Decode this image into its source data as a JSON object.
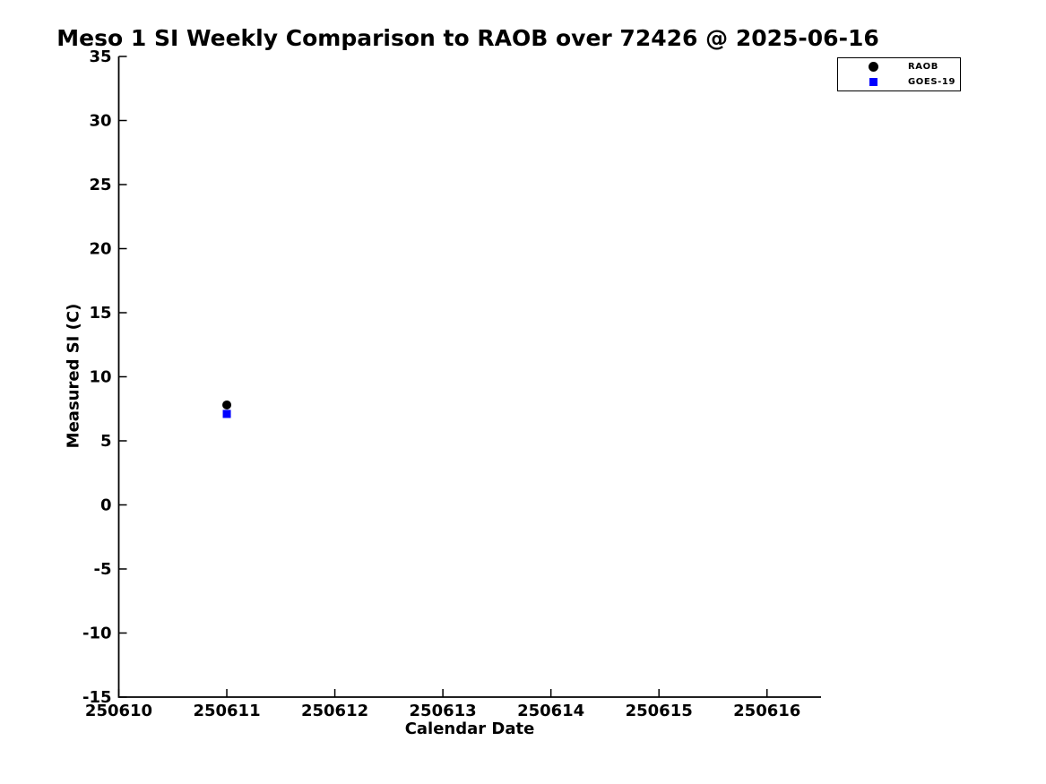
{
  "chart_data": {
    "type": "scatter",
    "title": "Meso 1 SI Weekly Comparison to RAOB over 72426 @ 2025-06-16",
    "xlabel": "Calendar Date",
    "ylabel": "Measured SI (C)",
    "xlim": [
      250610,
      250616.5
    ],
    "ylim": [
      -15,
      35
    ],
    "xticks": [
      250610,
      250611,
      250612,
      250613,
      250614,
      250615,
      250616
    ],
    "yticks": [
      35,
      30,
      25,
      20,
      15,
      10,
      5,
      0,
      -5,
      -10,
      -15
    ],
    "grid": false,
    "legend_position": "top-right",
    "axis_color": "#000000",
    "series": [
      {
        "name": "RAOB",
        "marker": "circle",
        "color": "#000000",
        "points": [
          {
            "x": 250611,
            "y": 7.8
          }
        ]
      },
      {
        "name": "GOES-19",
        "marker": "square",
        "color": "#0000ff",
        "points": [
          {
            "x": 250611,
            "y": 7.1
          }
        ]
      }
    ]
  }
}
